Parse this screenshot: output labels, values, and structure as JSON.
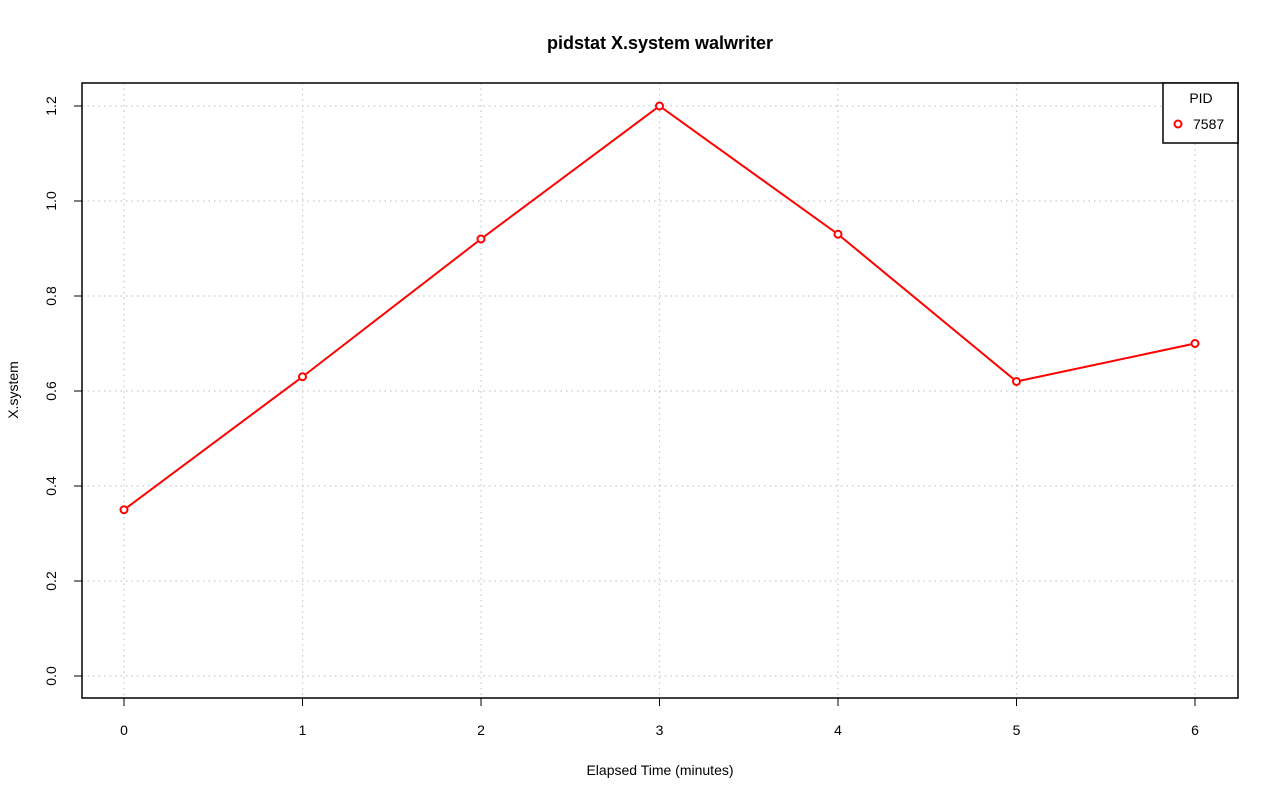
{
  "chart_data": {
    "type": "line",
    "title": "pidstat X.system walwriter",
    "xlabel": "Elapsed Time (minutes)",
    "ylabel": "X.system",
    "x": [
      0,
      1,
      2,
      3,
      4,
      5,
      6
    ],
    "series": [
      {
        "name": "7587",
        "values": [
          0.35,
          0.63,
          0.92,
          1.2,
          0.93,
          0.62,
          0.7
        ],
        "color": "#ff0000"
      }
    ],
    "xlim": [
      0,
      6
    ],
    "ylim": [
      0,
      1.2
    ],
    "xticks": [
      "0",
      "1",
      "2",
      "3",
      "4",
      "5",
      "6"
    ],
    "yticks": [
      "0.0",
      "0.2",
      "0.4",
      "0.6",
      "0.8",
      "1.0",
      "1.2"
    ],
    "grid": true,
    "legend": {
      "title": "PID",
      "position": "top-right"
    }
  }
}
